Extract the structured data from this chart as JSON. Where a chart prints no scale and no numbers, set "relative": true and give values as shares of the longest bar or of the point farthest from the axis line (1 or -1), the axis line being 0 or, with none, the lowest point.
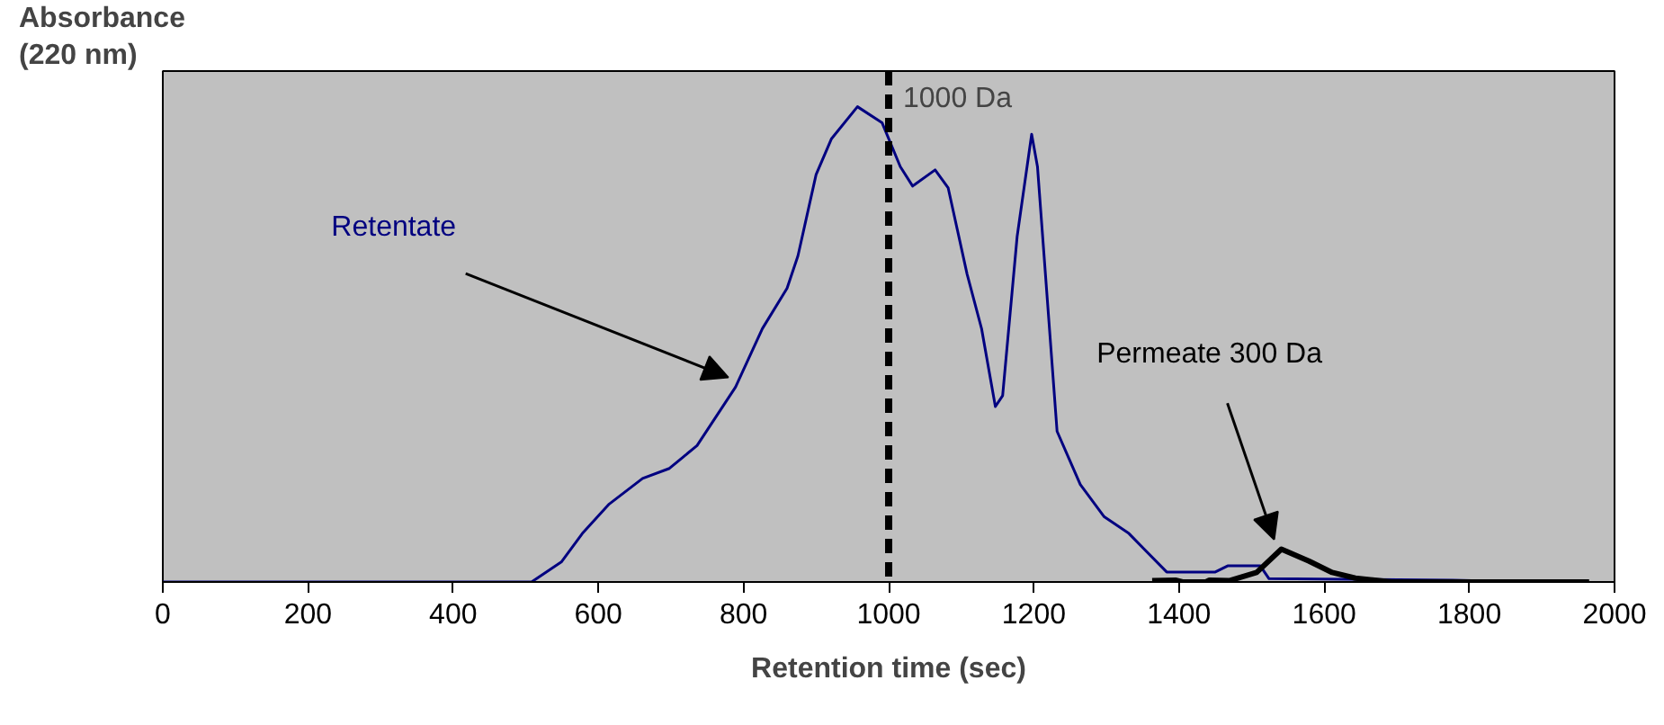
{
  "chart_data": {
    "type": "line",
    "relative": true,
    "xlabel": "Retention time (sec)",
    "ylabel": "Absorbance (220 nm)",
    "xlim": [
      0,
      2000
    ],
    "xticks": [
      0,
      200,
      400,
      600,
      800,
      1000,
      1200,
      1400,
      1600,
      1800,
      2000
    ],
    "grid": false,
    "series": [
      {
        "name": "Retentate",
        "color": "#000080",
        "x": [
          0,
          508,
          549,
          578,
          615,
          661,
          698,
          736,
          789,
          826,
          860,
          875,
          900,
          921,
          957,
          991,
          1016,
          1033,
          1064,
          1082,
          1108,
          1128,
          1147,
          1157,
          1177,
          1197,
          1205,
          1232,
          1264,
          1297,
          1331,
          1383,
          1450,
          1467,
          1512,
          1524,
          1777,
          1880
        ],
        "values": [
          0,
          0,
          0.042,
          0.102,
          0.164,
          0.218,
          0.239,
          0.287,
          0.41,
          0.533,
          0.618,
          0.686,
          0.857,
          0.932,
          1.0,
          0.966,
          0.874,
          0.833,
          0.867,
          0.829,
          0.648,
          0.533,
          0.369,
          0.392,
          0.727,
          0.942,
          0.874,
          0.317,
          0.205,
          0.137,
          0.102,
          0.021,
          0.021,
          0.034,
          0.034,
          0.007,
          0.004,
          0
        ]
      },
      {
        "name": "Permeate 300 Da",
        "color": "#000000",
        "x": [
          1363,
          1395,
          1405,
          1437,
          1442,
          1470,
          1507,
          1541,
          1579,
          1611,
          1643,
          1693,
          1965
        ],
        "values": [
          0.003,
          0.004,
          0,
          0,
          0.004,
          0.003,
          0.02,
          0.069,
          0.044,
          0.02,
          0.008,
          0,
          0
        ]
      }
    ],
    "ref_lines": [
      {
        "axis": "x",
        "value": 1000,
        "label": "1000 Da",
        "color": "#000000",
        "line_style": "dashed"
      }
    ]
  }
}
